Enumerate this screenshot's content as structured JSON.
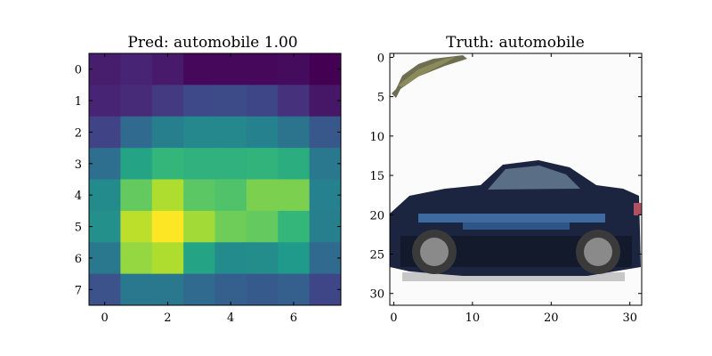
{
  "chart_data": [
    {
      "type": "heatmap",
      "title": "Pred: automobile 1.00",
      "colormap": "viridis",
      "xlim": [
        -0.5,
        7.5
      ],
      "ylim": [
        7.5,
        -0.5
      ],
      "x_ticks": [
        0,
        2,
        4,
        6
      ],
      "y_ticks": [
        0,
        1,
        2,
        3,
        4,
        5,
        6,
        7
      ],
      "values": [
        [
          0.08,
          0.1,
          0.07,
          0.02,
          0.02,
          0.02,
          0.03,
          0.0
        ],
        [
          0.1,
          0.12,
          0.17,
          0.22,
          0.23,
          0.21,
          0.14,
          0.06
        ],
        [
          0.2,
          0.34,
          0.43,
          0.47,
          0.47,
          0.44,
          0.38,
          0.27
        ],
        [
          0.36,
          0.58,
          0.66,
          0.64,
          0.64,
          0.65,
          0.62,
          0.4
        ],
        [
          0.48,
          0.76,
          0.88,
          0.74,
          0.72,
          0.8,
          0.8,
          0.44
        ],
        [
          0.5,
          0.9,
          1.0,
          0.86,
          0.78,
          0.76,
          0.66,
          0.43
        ],
        [
          0.4,
          0.84,
          0.88,
          0.58,
          0.48,
          0.49,
          0.54,
          0.34
        ],
        [
          0.25,
          0.4,
          0.4,
          0.34,
          0.3,
          0.28,
          0.3,
          0.21
        ]
      ]
    },
    {
      "type": "image",
      "title": "Truth: automobile",
      "image_size": [
        32,
        32
      ],
      "xlim": [
        -0.5,
        31.5
      ],
      "ylim": [
        31.5,
        -0.5
      ],
      "x_ticks": [
        0,
        10,
        20,
        30
      ],
      "y_ticks": [
        0,
        5,
        10,
        15,
        20,
        25,
        30
      ],
      "content": "car"
    }
  ]
}
